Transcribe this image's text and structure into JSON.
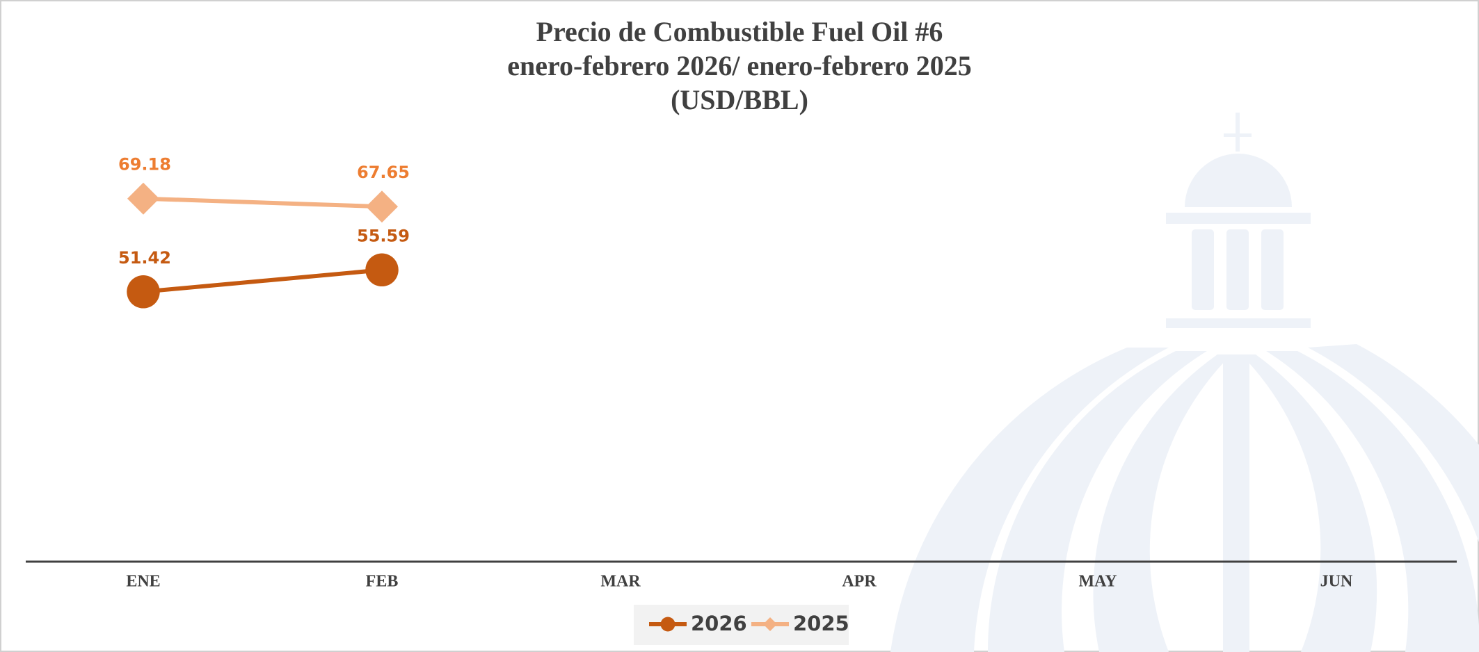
{
  "chart_data": {
    "type": "line",
    "title": "Precio de Combustible Fuel Oil #6",
    "subtitle": [
      "enero-febrero 2026/ enero-febrero 2025",
      "(USD/BBL)"
    ],
    "categories": [
      "ENE",
      "FEB",
      "MAR",
      "APR",
      "MAY",
      "JUN"
    ],
    "series": [
      {
        "name": "2026",
        "color": "#c55a11",
        "label_color": "#c55a11",
        "marker": "circle",
        "values": [
          51.42,
          55.59,
          null,
          null,
          null,
          null
        ]
      },
      {
        "name": "2025",
        "color": "#f4b183",
        "label_color": "#ed7d31",
        "marker": "diamond",
        "values": [
          69.18,
          67.65,
          null,
          null,
          null,
          null
        ]
      }
    ],
    "ylim": [
      0,
      80
    ],
    "legend": "bottom"
  }
}
